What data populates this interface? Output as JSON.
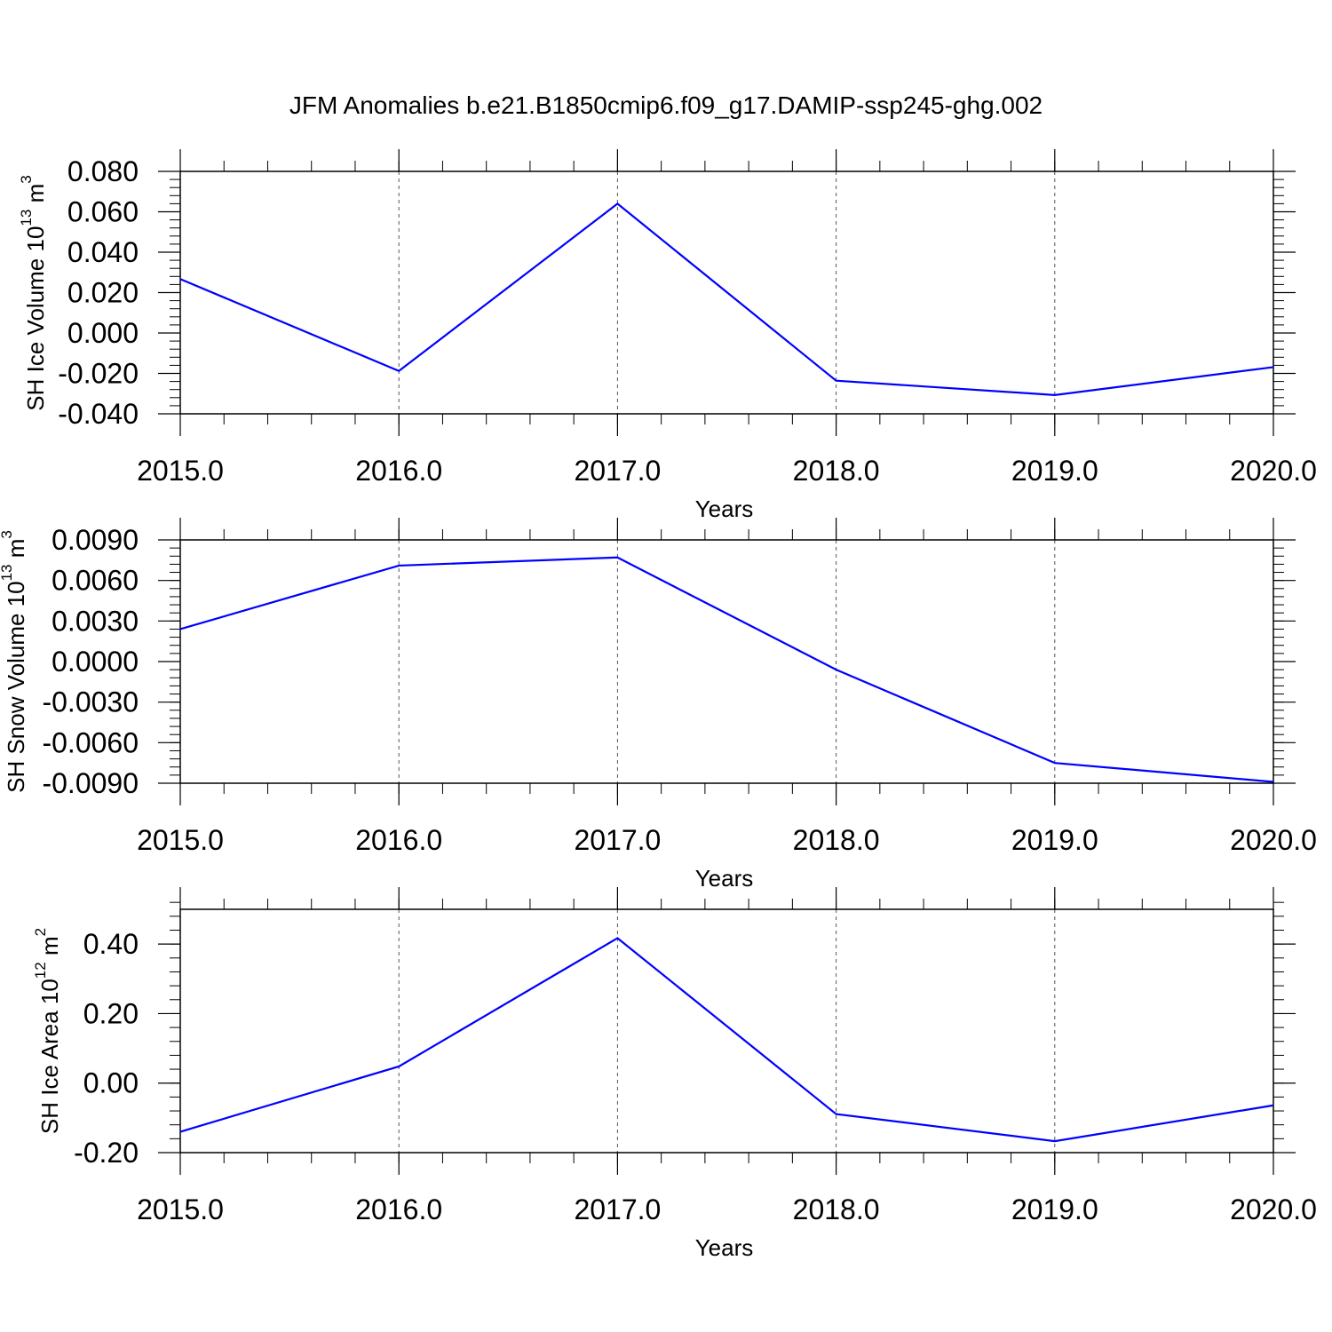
{
  "title": "JFM Anomalies b.e21.B1850cmip6.f09_g17.DAMIP-ssp245-ghg.002",
  "chart_data": [
    {
      "type": "line",
      "ylabel": "SH Ice Volume 10",
      "ylabel_exp": "13",
      "ylabel_unit": "m",
      "ylabel_unit_exp": "3",
      "xlabel": "Years",
      "xlim": [
        2015,
        2020
      ],
      "ylim": [
        -0.04,
        0.08
      ],
      "grid": "vertical dashed at major x ticks",
      "xticks": [
        2015,
        2016,
        2017,
        2018,
        2019,
        2020
      ],
      "xtick_labels": [
        "2015.0",
        "2016.0",
        "2017.0",
        "2018.0",
        "2019.0",
        "2020.0"
      ],
      "yticks": [
        0.08,
        0.06,
        0.04,
        0.02,
        0.0,
        -0.02,
        -0.04
      ],
      "ytick_labels": [
        "0.080",
        "0.060",
        "0.040",
        "0.020",
        "0.000",
        "-0.020",
        "-0.040"
      ],
      "line_color": "#0000ff",
      "series": [
        {
          "x": [
            2015,
            2016,
            2017,
            2018,
            2019,
            2020
          ],
          "y": [
            0.0267,
            -0.0188,
            0.064,
            -0.0236,
            -0.0307,
            -0.0169
          ]
        }
      ]
    },
    {
      "type": "line",
      "ylabel": "SH Snow Volume 10",
      "ylabel_exp": "13",
      "ylabel_unit": "m",
      "ylabel_unit_exp": "3",
      "xlabel": "Years",
      "xlim": [
        2015,
        2020
      ],
      "ylim": [
        -0.009,
        0.009
      ],
      "grid": "vertical dashed at major x ticks",
      "xticks": [
        2015,
        2016,
        2017,
        2018,
        2019,
        2020
      ],
      "xtick_labels": [
        "2015.0",
        "2016.0",
        "2017.0",
        "2018.0",
        "2019.0",
        "2020.0"
      ],
      "yticks": [
        0.009,
        0.006,
        0.003,
        0.0,
        -0.003,
        -0.006,
        -0.009
      ],
      "ytick_labels": [
        "0.0090",
        "0.0060",
        "0.0030",
        "0.0000",
        "-0.0030",
        "-0.0060",
        "-0.0090"
      ],
      "line_color": "#0000ff",
      "series": [
        {
          "x": [
            2015,
            2016,
            2017,
            2018,
            2019,
            2020
          ],
          "y": [
            0.0024,
            0.0071,
            0.0077,
            -0.0006,
            -0.0075,
            -0.0089
          ]
        }
      ]
    },
    {
      "type": "line",
      "ylabel": "SH Ice Area 10",
      "ylabel_exp": "12",
      "ylabel_unit": "m",
      "ylabel_unit_exp": "2",
      "xlabel": "Years",
      "xlim": [
        2015,
        2020
      ],
      "ylim": [
        -0.2,
        0.5
      ],
      "grid": "vertical dashed at major x ticks",
      "xticks": [
        2015,
        2016,
        2017,
        2018,
        2019,
        2020
      ],
      "xtick_labels": [
        "2015.0",
        "2016.0",
        "2017.0",
        "2018.0",
        "2019.0",
        "2020.0"
      ],
      "yticks": [
        0.4,
        0.2,
        0.0,
        -0.2
      ],
      "ytick_labels": [
        "0.40",
        "0.20",
        "0.00",
        "-0.20"
      ],
      "line_color": "#0000ff",
      "series": [
        {
          "x": [
            2015,
            2016,
            2017,
            2018,
            2019,
            2020
          ],
          "y": [
            -0.14,
            0.048,
            0.417,
            -0.089,
            -0.167,
            -0.064
          ]
        }
      ]
    }
  ]
}
